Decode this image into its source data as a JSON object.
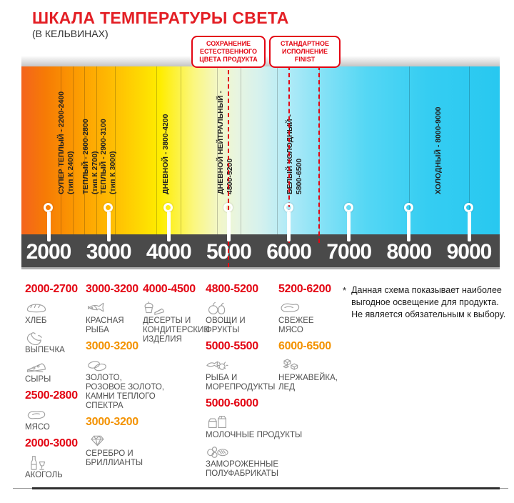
{
  "title": "ШКАЛА ТЕМПЕРАТУРЫ СВЕТА",
  "subtitle": "(В КЕЛЬВИНАХ)",
  "callouts": [
    {
      "label": "СОХРАНЕНИЕ\nЕСТЕСТВЕННОГО\nЦВЕТА ПРОДУКТА",
      "points_to_k": 5000
    },
    {
      "label": "СТАНДАРТНОЕ\nИСПОЛНЕНИЕ\nFINIST",
      "points_to_k_range": [
        6000,
        6500
      ]
    }
  ],
  "colors": {
    "title_red": "#E31E24",
    "accent_red": "#E30613",
    "accent_orange": "#F39200",
    "axis_bar": "#4A4A4A",
    "tick_text": "#FFFFFF",
    "gradient_stops": [
      {
        "c": "#F4641D",
        "p": 0
      },
      {
        "c": "#F67B05",
        "p": 5
      },
      {
        "c": "#FDA201",
        "p": 13
      },
      {
        "c": "#FFC103",
        "p": 20
      },
      {
        "c": "#FEED00",
        "p": 29
      },
      {
        "c": "#FBF77E",
        "p": 36
      },
      {
        "c": "#F3F7C5",
        "p": 41
      },
      {
        "c": "#E8F5E0",
        "p": 45
      },
      {
        "c": "#D5F1EE",
        "p": 50
      },
      {
        "c": "#AFEAF7",
        "p": 56
      },
      {
        "c": "#7FE0F6",
        "p": 64
      },
      {
        "c": "#55D7F4",
        "p": 72
      },
      {
        "c": "#35CDF2",
        "p": 85
      },
      {
        "c": "#28C8F0",
        "p": 100
      }
    ]
  },
  "scale": {
    "unit": "K",
    "min": 2000,
    "max": 9000,
    "ticks": [
      "2000",
      "3000",
      "4000",
      "5000",
      "6000",
      "7000",
      "8000",
      "9000"
    ],
    "boundaries_k": [
      2200,
      2400,
      2600,
      2800,
      3100,
      3800,
      4200,
      4800,
      5200,
      5800,
      6500,
      8000,
      9000
    ],
    "zones": [
      {
        "label": "СУПЕР ТЕПЛЫЙ - 2200-2400\n(тип К 2400)",
        "k_center": 2300
      },
      {
        "label": "ТЕПЛЫЙ - 2600-2800\n(тип К 2700)",
        "k_center": 2700
      },
      {
        "label": "ТЕПЛЫЙ - 2900-3100\n(тип К 3000)",
        "k_center": 3000
      },
      {
        "label": "ДНЕВНОЙ - 3800-4200",
        "k_center": 3950
      },
      {
        "label": "ДНЕВНОЙ НЕЙТРАЛЬНЫЙ -\n4800-5200",
        "k_center": 4950
      },
      {
        "label": "БЕЛЫЙ ХОЛОДНЫЙ -\n5800-6500",
        "k_center": 6100
      },
      {
        "label": "ХОЛОДНЫЙ - 8000-9000",
        "k_center": 8500
      }
    ],
    "connectors": [
      {
        "k": 5000,
        "through_bar": true
      },
      {
        "k": 6000,
        "through_bar": false
      },
      {
        "k": 6500,
        "through_bar": false
      }
    ]
  },
  "legend": {
    "columns": [
      {
        "groups": [
          {
            "range": "2000-2700",
            "color": "red",
            "items": [
              {
                "icon": "bread-icon",
                "label": "ХЛЕБ"
              },
              {
                "icon": "pastry-icon",
                "label": "ВЫПЕЧКА"
              },
              {
                "icon": "cheese-icon",
                "label": "СЫРЫ"
              }
            ]
          },
          {
            "range": "2500-2800",
            "color": "red",
            "items": [
              {
                "icon": "meat-icon",
                "label": "МЯСО"
              }
            ]
          },
          {
            "range": "2000-3000",
            "color": "red",
            "items": [
              {
                "icon": "alcohol-icon",
                "label": "АКОГОЛЬ"
              }
            ]
          }
        ]
      },
      {
        "groups": [
          {
            "range": "3000-3200",
            "color": "red",
            "items": [
              {
                "icon": "fish-icon",
                "label": "КРАСНАЯ\nРЫБА"
              }
            ]
          },
          {
            "range": "3000-3200",
            "color": "orange",
            "items": [
              {
                "icon": "rings-icon",
                "label": "ЗОЛОТО,\nРОЗОВОЕ ЗОЛОТО,\nКАМНИ ТЕПЛОГО\nСПЕКТРА"
              }
            ]
          },
          {
            "range": "3000-3200",
            "color": "orange",
            "items": [
              {
                "icon": "diamond-icon",
                "label": "СЕРЕБРО И\nБРИЛЛИАНТЫ"
              }
            ]
          }
        ]
      },
      {
        "groups": [
          {
            "range": "4000-4500",
            "color": "red",
            "items": [
              {
                "icon": "dessert-icon",
                "label": "ДЕСЕРТЫ И\nКОНДИТЕРСКИЕ\nИЗДЕЛИЯ"
              }
            ]
          }
        ]
      },
      {
        "groups": [
          {
            "range": "4800-5200",
            "color": "red",
            "items": [
              {
                "icon": "fruits-icon",
                "label": "ОВОЩИ И\nФРУКТЫ"
              }
            ]
          },
          {
            "range": "5000-5500",
            "color": "red",
            "items": [
              {
                "icon": "seafood-icon",
                "label": "РЫБА И\nМОРЕПРОДУКТЫ"
              }
            ]
          },
          {
            "range": "5000-6000",
            "color": "red",
            "items": [
              {
                "icon": "milk-icon",
                "label": "МОЛОЧНЫЕ ПРОДУКТЫ"
              },
              {
                "icon": "frozen-icon",
                "label": "ЗАМОРОЖЕННЫЕ\nПОЛУФАБРИКАТЫ"
              }
            ]
          }
        ]
      },
      {
        "groups": [
          {
            "range": "5200-6200",
            "color": "red",
            "items": [
              {
                "icon": "fresh-meat-icon",
                "label": "СВЕЖЕЕ\nМЯСО"
              }
            ]
          },
          {
            "range": "6000-6500",
            "color": "orange",
            "items": [
              {
                "icon": "ice-icon",
                "label": "НЕРЖАВЕЙКА,\nЛЕД"
              }
            ]
          }
        ]
      }
    ]
  },
  "note": {
    "marker": "*",
    "text": "Данная схема показывает наиболее\nвыгодное освещение для продукта.\nНе является обязательным к выбору."
  }
}
